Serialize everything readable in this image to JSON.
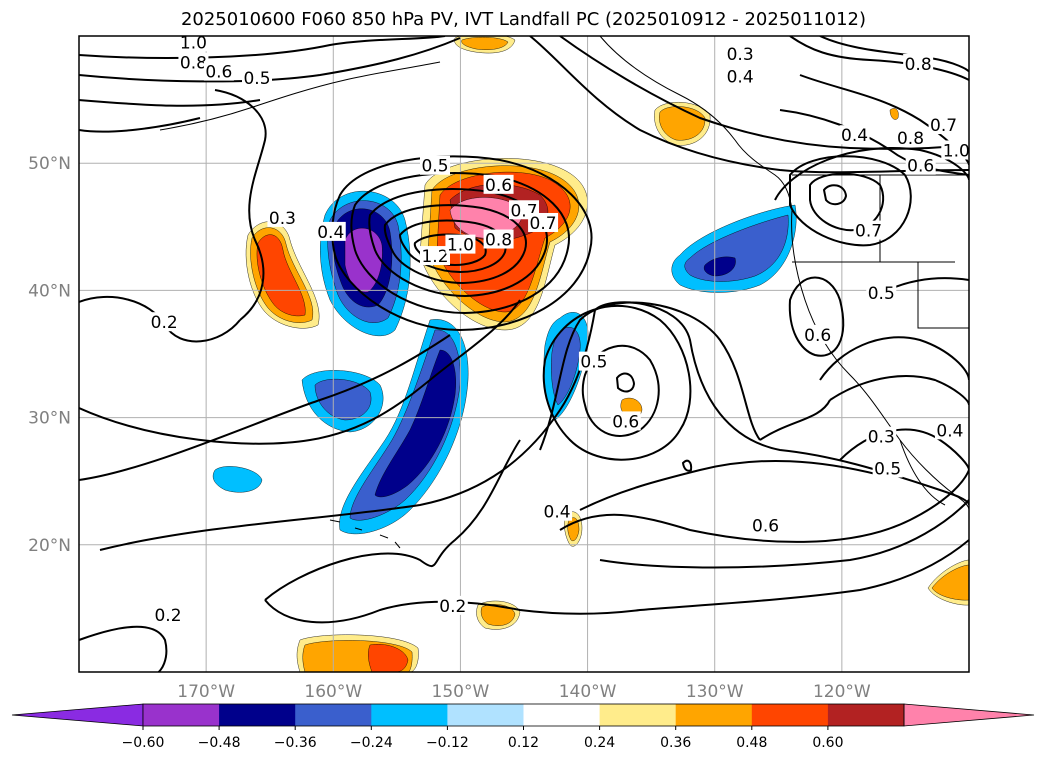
{
  "title": "2025010600 F060 850 hPa PV, IVT Landfall PC (2025010912 - 2025011012)",
  "map": {
    "lon_range": [
      -180,
      -110
    ],
    "lat_range": [
      10,
      60
    ],
    "lon_ticks": [
      {
        "lon": -170,
        "label": "170°W"
      },
      {
        "lon": -160,
        "label": "160°W"
      },
      {
        "lon": -150,
        "label": "150°W"
      },
      {
        "lon": -140,
        "label": "140°W"
      },
      {
        "lon": -130,
        "label": "130°W"
      },
      {
        "lon": -120,
        "label": "120°W"
      }
    ],
    "lat_ticks": [
      {
        "lat": 50,
        "label": "50°N"
      },
      {
        "lat": 40,
        "label": "40°N"
      },
      {
        "lat": 30,
        "label": "30°N"
      },
      {
        "lat": 20,
        "label": "20°N"
      }
    ],
    "grid": true,
    "contour_labels": [
      {
        "lon": -171.0,
        "lat": 59.5,
        "text": "1.0"
      },
      {
        "lon": -171.0,
        "lat": 57.9,
        "text": "0.8"
      },
      {
        "lon": -169.0,
        "lat": 57.2,
        "text": "0.6"
      },
      {
        "lon": -166.0,
        "lat": 56.7,
        "text": "0.5"
      },
      {
        "lon": -152.0,
        "lat": 49.8,
        "text": "0.5"
      },
      {
        "lon": -164.0,
        "lat": 45.7,
        "text": "0.3"
      },
      {
        "lon": -160.2,
        "lat": 44.6,
        "text": "0.4"
      },
      {
        "lon": -147.0,
        "lat": 48.3,
        "text": "0.6"
      },
      {
        "lon": -145.0,
        "lat": 46.3,
        "text": "0.7"
      },
      {
        "lon": -143.5,
        "lat": 45.3,
        "text": "0.7"
      },
      {
        "lon": -152.0,
        "lat": 42.7,
        "text": "1.2"
      },
      {
        "lon": -150.0,
        "lat": 43.6,
        "text": "1.0"
      },
      {
        "lon": -147.0,
        "lat": 44.0,
        "text": "0.8"
      },
      {
        "lon": -173.3,
        "lat": 37.5,
        "text": "0.2"
      },
      {
        "lon": -139.5,
        "lat": 34.4,
        "text": "0.5"
      },
      {
        "lon": -137.0,
        "lat": 29.7,
        "text": "0.6"
      },
      {
        "lon": -142.4,
        "lat": 22.6,
        "text": "0.4"
      },
      {
        "lon": -150.6,
        "lat": 15.2,
        "text": "0.2"
      },
      {
        "lon": -173.0,
        "lat": 14.5,
        "text": "0.2"
      },
      {
        "lon": -128.0,
        "lat": 58.6,
        "text": "0.3"
      },
      {
        "lon": -128.0,
        "lat": 56.8,
        "text": "0.4"
      },
      {
        "lon": -114.0,
        "lat": 57.8,
        "text": "0.8"
      },
      {
        "lon": -119.0,
        "lat": 52.2,
        "text": "0.4"
      },
      {
        "lon": -112.0,
        "lat": 53.0,
        "text": "0.7"
      },
      {
        "lon": -111.0,
        "lat": 51.0,
        "text": "1.0"
      },
      {
        "lon": -114.6,
        "lat": 52.0,
        "text": "0.8"
      },
      {
        "lon": -113.8,
        "lat": 49.8,
        "text": "0.6"
      },
      {
        "lon": -117.9,
        "lat": 44.7,
        "text": "0.7"
      },
      {
        "lon": -116.9,
        "lat": 39.8,
        "text": "0.5"
      },
      {
        "lon": -121.9,
        "lat": 36.5,
        "text": "0.6"
      },
      {
        "lon": -116.9,
        "lat": 28.5,
        "text": "0.3"
      },
      {
        "lon": -116.4,
        "lat": 26.0,
        "text": "0.5"
      },
      {
        "lon": -111.5,
        "lat": 29.0,
        "text": "0.4"
      },
      {
        "lon": -126.0,
        "lat": 21.5,
        "text": "0.6"
      }
    ]
  },
  "colorbar": {
    "levels": [
      -0.6,
      -0.48,
      -0.36,
      -0.24,
      -0.12,
      0.12,
      0.24,
      0.36,
      0.48,
      0.6
    ],
    "labels": [
      "−0.60",
      "−0.48",
      "−0.36",
      "−0.24",
      "−0.12",
      "0.12",
      "0.24",
      "0.36",
      "0.48",
      "0.60"
    ],
    "colors": [
      "#8a2be2",
      "#9932cc",
      "#00008b",
      "#3a5fcd",
      "#00bfff",
      "#b0e2ff",
      "#ffffff",
      "#ffec8b",
      "#ffa500",
      "#ff4500",
      "#b22222",
      "#ff82ab"
    ]
  }
}
